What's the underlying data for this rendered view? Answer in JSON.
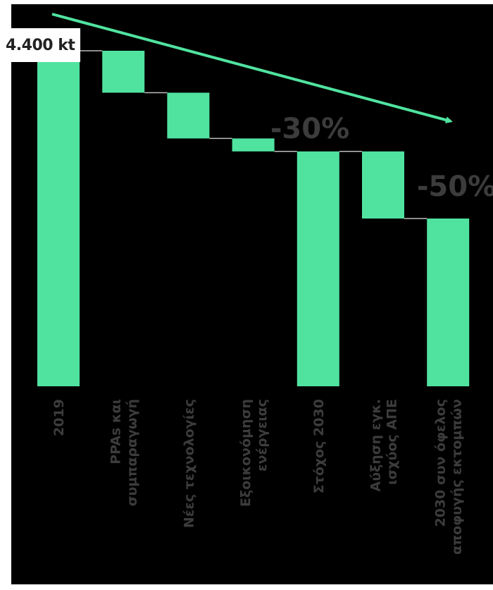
{
  "start_label": "4.400 kt",
  "chart_data": {
    "type": "bar",
    "subtype": "waterfall",
    "unit": "kt",
    "categories": [
      "2019",
      "PPAs και συμπαραγωγή",
      "Νέες τεχνολογίες",
      "Εξοικονόμηση ενέργειας",
      "Στόχος 2030",
      "Αύξηση εγκ. ισχύος ΑΠΕ",
      "2030 συν όφελος αποφυγής εκτομπών"
    ],
    "category_lines": [
      [
        "2019"
      ],
      [
        "PPAs και",
        "συμπαραγωγή"
      ],
      [
        "Νέες τεχνολογίες"
      ],
      [
        "Εξοικονόμηση",
        "ενέργειας"
      ],
      [
        "Στόχος 2030"
      ],
      [
        "Αύξηση εγκ.",
        "ισχύος ΑΠΕ"
      ],
      [
        "2030 συν όφελος",
        "αποφυγής εκτομπών"
      ]
    ],
    "bars": [
      {
        "kind": "total",
        "start": 0,
        "end": 4400
      },
      {
        "kind": "delta",
        "start": 4400,
        "end": 3850
      },
      {
        "kind": "delta",
        "start": 3850,
        "end": 3250
      },
      {
        "kind": "delta",
        "start": 3250,
        "end": 3080
      },
      {
        "kind": "total",
        "start": 0,
        "end": 3080
      },
      {
        "kind": "delta",
        "start": 3080,
        "end": 2200
      },
      {
        "kind": "total",
        "start": 0,
        "end": 2200
      }
    ],
    "annotations": [
      {
        "text": "-30%",
        "after_category": 4
      },
      {
        "text": "-50%",
        "after_category": 6
      }
    ],
    "ylim": [
      0,
      4400
    ],
    "grid": false,
    "colors": {
      "bar": "#50e3a0",
      "connector": "#bdbdbd",
      "trend_arrow": "#50e3a0",
      "background": "#000000",
      "text": "#3c3c3c"
    }
  }
}
